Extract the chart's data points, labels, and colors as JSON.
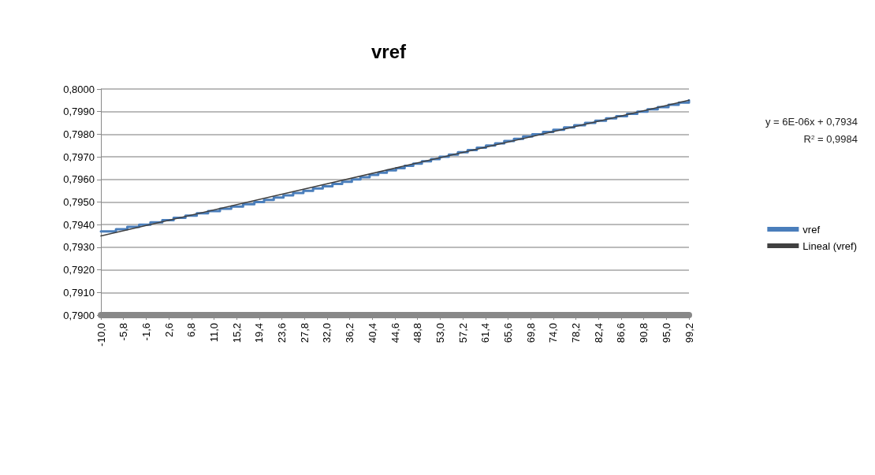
{
  "chart_data": {
    "type": "step",
    "title": "vref",
    "annotations": [
      "y = 6E-06x + 0,7934",
      "R$^{2}$ = 0,9984"
    ],
    "xlim": [
      -10,
      99.2
    ],
    "xticks": [
      {
        "value": -10,
        "label": "-10,0"
      },
      {
        "value": -5.8,
        "label": "-5,8"
      },
      {
        "value": -1.6,
        "label": "-1,6"
      },
      {
        "value": 2.6,
        "label": "2,6"
      },
      {
        "value": 6.8,
        "label": "6,8"
      },
      {
        "value": 11,
        "label": "11,0"
      },
      {
        "value": 15.2,
        "label": "15,2"
      },
      {
        "value": 19.4,
        "label": "19,4"
      },
      {
        "value": 23.6,
        "label": "23,6"
      },
      {
        "value": 27.8,
        "label": "27,8"
      },
      {
        "value": 32,
        "label": "32,0"
      },
      {
        "value": 36.2,
        "label": "36,2"
      },
      {
        "value": 40.4,
        "label": "40,4"
      },
      {
        "value": 44.6,
        "label": "44,6"
      },
      {
        "value": 48.8,
        "label": "48,8"
      },
      {
        "value": 53,
        "label": "53,0"
      },
      {
        "value": 57.2,
        "label": "57,2"
      },
      {
        "value": 61.4,
        "label": "61,4"
      },
      {
        "value": 65.6,
        "label": "65,6"
      },
      {
        "value": 69.8,
        "label": "69,8"
      },
      {
        "value": 74,
        "label": "74,0"
      },
      {
        "value": 78.2,
        "label": "78,2"
      },
      {
        "value": 82.4,
        "label": "82,4"
      },
      {
        "value": 86.6,
        "label": "86,6"
      },
      {
        "value": 90.8,
        "label": "90,8"
      },
      {
        "value": 95,
        "label": "95,0"
      },
      {
        "value": 99.2,
        "label": "99,2"
      }
    ],
    "ylim": [
      0.79,
      0.8
    ],
    "yticks": [
      {
        "value": 0.79,
        "label": "0,7900"
      },
      {
        "value": 0.791,
        "label": "0,7910"
      },
      {
        "value": 0.792,
        "label": "0,7920"
      },
      {
        "value": 0.793,
        "label": "0,7930"
      },
      {
        "value": 0.794,
        "label": "0,7940"
      },
      {
        "value": 0.795,
        "label": "0,7950"
      },
      {
        "value": 0.796,
        "label": "0,7960"
      },
      {
        "value": 0.797,
        "label": "0,7970"
      },
      {
        "value": 0.798,
        "label": "0,7980"
      },
      {
        "value": 0.799,
        "label": "0,7990"
      },
      {
        "value": 0.8,
        "label": "0,8000"
      }
    ],
    "grid": "y",
    "legend": "right",
    "marker": "none",
    "line_style": "solid",
    "series": [
      {
        "name": "vref",
        "color": "#4a7ebb",
        "x": [
          -10,
          -7.2,
          -5.1,
          -2.9,
          -0.8,
          1.4,
          3.5,
          5.7,
          7.8,
          9.9,
          12.1,
          14.2,
          16.4,
          18.5,
          20.3,
          22.1,
          23.9,
          25.7,
          27.6,
          29.4,
          31.2,
          33.0,
          34.8,
          36.6,
          38.2,
          39.9,
          41.5,
          43.1,
          44.8,
          46.4,
          48.0,
          49.6,
          51.3,
          52.9,
          54.6,
          56.3,
          58.1,
          59.8,
          61.5,
          63.2,
          64.9,
          66.7,
          68.4,
          70.1,
          72.1,
          74.0,
          76.0,
          77.9,
          79.9,
          81.8,
          83.8,
          85.7,
          87.7,
          89.6,
          91.5,
          93.4,
          95.4,
          97.3,
          99.2
        ],
        "values": [
          0.7937,
          0.7938,
          0.7939,
          0.794,
          0.7941,
          0.7942,
          0.7943,
          0.7944,
          0.7945,
          0.7946,
          0.7947,
          0.7948,
          0.7949,
          0.795,
          0.7951,
          0.7952,
          0.7953,
          0.7954,
          0.7955,
          0.7956,
          0.7957,
          0.7958,
          0.7959,
          0.796,
          0.7961,
          0.7962,
          0.7963,
          0.7964,
          0.7965,
          0.7966,
          0.7967,
          0.7968,
          0.7969,
          0.797,
          0.7971,
          0.7972,
          0.7973,
          0.7974,
          0.7975,
          0.7976,
          0.7977,
          0.7978,
          0.7979,
          0.798,
          0.7981,
          0.7982,
          0.7983,
          0.7984,
          0.7985,
          0.7986,
          0.7987,
          0.7988,
          0.7989,
          0.799,
          0.7991,
          0.7992,
          0.7993,
          0.7994,
          0.7995
        ]
      },
      {
        "name": "Lineal (vref)",
        "color": "#404040",
        "type": "line",
        "x": [
          -10,
          99.2
        ],
        "values": [
          0.7935,
          0.7995
        ]
      }
    ]
  }
}
